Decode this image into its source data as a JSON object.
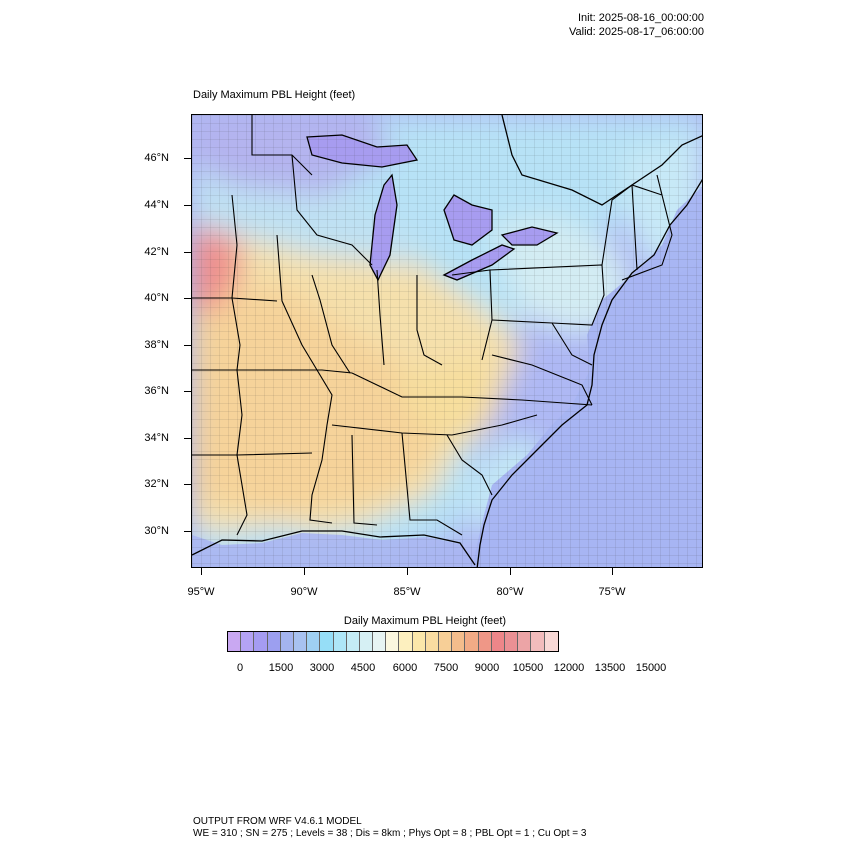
{
  "header": {
    "init": "Init: 2025-08-16_00:00:00",
    "valid": "Valid: 2025-08-17_06:00:00"
  },
  "plot": {
    "title": "Daily Maximum PBL Height   (feet)"
  },
  "map": {
    "lat_labels": [
      "46°N",
      "44°N",
      "42°N",
      "40°N",
      "38°N",
      "36°N",
      "34°N",
      "32°N",
      "30°N"
    ],
    "lon_labels": [
      "95°W",
      "90°W",
      "85°W",
      "80°W",
      "75°W"
    ]
  },
  "colorbar": {
    "title": "Daily Maximum PBL Height  (feet)",
    "colors": [
      "#c9a8f2",
      "#b4a3f4",
      "#a59cf2",
      "#9c9ff0",
      "#a4b4ef",
      "#a8c2f0",
      "#9fd0f3",
      "#96def7",
      "#aee6f7",
      "#c4ecf6",
      "#d6f0f4",
      "#e7f4f3",
      "#fbf7df",
      "#fdf0bf",
      "#fbe7aa",
      "#f9dca1",
      "#f7cf97",
      "#f4bd8c",
      "#f2ab86",
      "#ef9787",
      "#ed8689",
      "#ea9094",
      "#eca4a6",
      "#f2bcbc",
      "#f9d9d6"
    ],
    "labels": [
      "0",
      "1500",
      "3000",
      "4500",
      "6000",
      "7500",
      "9000",
      "10500",
      "12000",
      "13500",
      "15000"
    ]
  },
  "footer": {
    "line1": "OUTPUT FROM WRF V4.6.1 MODEL",
    "line2": "WE = 310 ; SN = 275 ; Levels = 38 ; Dis = 8km ; Phys Opt = 8 ; PBL Opt = 1 ; Cu Opt = 3"
  }
}
